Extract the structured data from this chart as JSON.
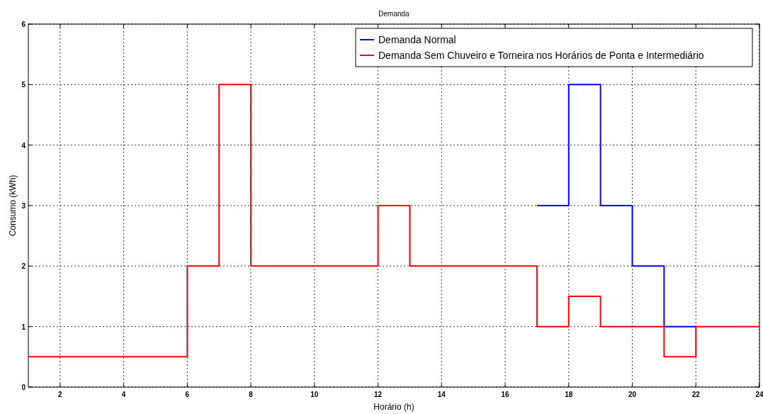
{
  "chart_data": {
    "type": "step",
    "title": "Demanda",
    "xlabel": "Horário (h)",
    "ylabel": "Consumo (kWh)",
    "xlim": [
      1,
      24
    ],
    "xticks": [
      2,
      4,
      6,
      8,
      10,
      12,
      14,
      16,
      18,
      20,
      22,
      24
    ],
    "ylim": [
      0,
      6
    ],
    "yticks": [
      0,
      1,
      2,
      3,
      4,
      5,
      6
    ],
    "grid": true,
    "legend": "top right",
    "line_style": "solid",
    "series": [
      {
        "name": "Demanda Normal",
        "color": "#0000ff",
        "x": [
          17,
          18,
          19,
          20,
          21,
          22
        ],
        "values": [
          3,
          5,
          3,
          2,
          1,
          1
        ]
      },
      {
        "name": "Demanda Sem Chuveiro e Torneira nos Horários de Ponta e Intermediário",
        "color": "#ff0000",
        "x": [
          1,
          2,
          3,
          4,
          5,
          6,
          7,
          8,
          9,
          10,
          11,
          12,
          13,
          14,
          15,
          16,
          17,
          18,
          19,
          20,
          21,
          22,
          23,
          24
        ],
        "values": [
          0.5,
          0.5,
          0.5,
          0.5,
          0.5,
          2,
          5,
          2,
          2,
          2,
          2,
          3,
          2,
          2,
          2,
          2,
          1,
          1.5,
          1,
          1,
          0.5,
          1,
          1,
          1
        ]
      }
    ]
  }
}
